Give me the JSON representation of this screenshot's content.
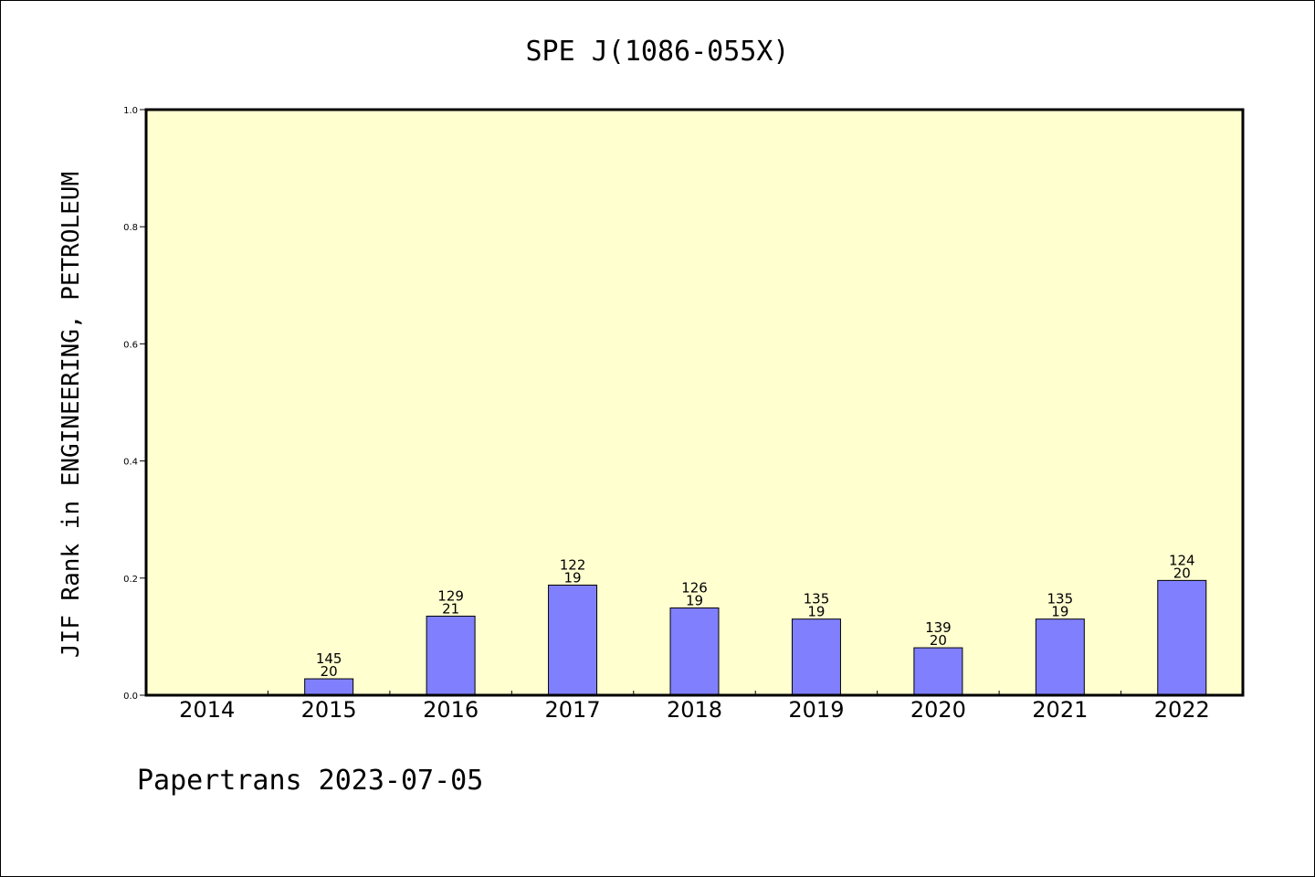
{
  "chart_data": {
    "type": "bar",
    "title": "SPE J(1086-055X)",
    "ylabel": "JIF Rank in ENGINEERING, PETROLEUM",
    "xlabel": "",
    "ylim": [
      0,
      1.0
    ],
    "yticks": [
      "0.0",
      "0.2",
      "0.4",
      "0.6",
      "0.8",
      "1.0"
    ],
    "categories": [
      "2014",
      "2015",
      "2016",
      "2017",
      "2018",
      "2019",
      "2020",
      "2021",
      "2022"
    ],
    "values": [
      null,
      0.028,
      0.135,
      0.188,
      0.149,
      0.13,
      0.081,
      0.13,
      0.196
    ],
    "labels": [
      null,
      [
        "145",
        "20"
      ],
      [
        "129",
        "21"
      ],
      [
        "122",
        "19"
      ],
      [
        "126",
        "19"
      ],
      [
        "135",
        "19"
      ],
      [
        "139",
        "20"
      ],
      [
        "135",
        "19"
      ],
      [
        "124",
        "20"
      ]
    ],
    "bar_color": "#8080ff",
    "plot_background": "#ffffd0",
    "grid": false,
    "legend": "none"
  },
  "footer": "Papertrans 2023-07-05"
}
